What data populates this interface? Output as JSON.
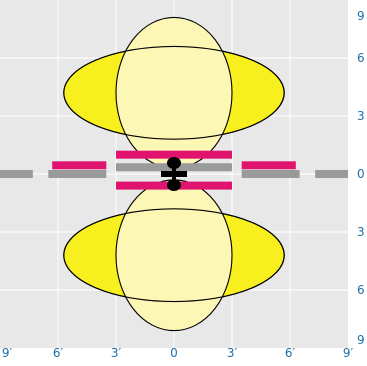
{
  "colors": {
    "grid_bg": "#e8e8e8",
    "grid_line": "#ffffff",
    "lobe_fill": "#f7f01e",
    "lobe_light_fill": "#fdf7b6",
    "stroke": "#000000",
    "bar_magenta": "#e0136e",
    "bar_gray": "#9a9a9a",
    "label": "#1f6fa8"
  },
  "axes": {
    "x_labels": [
      "9′",
      "6′",
      "3′",
      "0",
      "3′",
      "6′",
      "9′"
    ],
    "y_labels": [
      "9",
      "6",
      "3",
      "0",
      "3",
      "6",
      "9"
    ]
  },
  "chart_data": {
    "type": "other",
    "units": "ft",
    "x_range": [
      -9,
      9
    ],
    "y_range": [
      -9,
      9
    ],
    "lobes": [
      {
        "shape": "ellipse",
        "cx": 0,
        "cy": 4.2,
        "rx": 5.7,
        "ry": 2.4,
        "fill": "yellow"
      },
      {
        "shape": "ellipse",
        "cx": 0,
        "cy": 4.2,
        "rx": 3.0,
        "ry": 3.9,
        "fill": "light-yellow"
      },
      {
        "shape": "ellipse",
        "cx": 0,
        "cy": -4.2,
        "rx": 5.7,
        "ry": 2.4,
        "fill": "yellow"
      },
      {
        "shape": "ellipse",
        "cx": 0,
        "cy": -4.2,
        "rx": 3.0,
        "ry": 3.9,
        "fill": "light-yellow"
      }
    ],
    "bars": [
      {
        "color": "magenta",
        "x1": -3.0,
        "x2": 3.0,
        "y": 1.0
      },
      {
        "color": "magenta",
        "x1": -3.0,
        "x2": 3.0,
        "y": -0.6
      },
      {
        "color": "magenta",
        "x1": -6.3,
        "x2": -3.5,
        "y": 0.45
      },
      {
        "color": "magenta",
        "x1": 3.5,
        "x2": 6.3,
        "y": 0.45
      },
      {
        "color": "gray",
        "x1": -9.0,
        "x2": -7.3,
        "y": 0.0
      },
      {
        "color": "gray",
        "x1": -6.5,
        "x2": -3.5,
        "y": 0.0
      },
      {
        "color": "gray",
        "x1": -3.0,
        "x2": 3.0,
        "y": 0.35
      },
      {
        "color": "gray",
        "x1": 3.5,
        "x2": 6.5,
        "y": 0.0
      },
      {
        "color": "gray",
        "x1": 7.3,
        "x2": 9.0,
        "y": 0.0
      }
    ]
  }
}
